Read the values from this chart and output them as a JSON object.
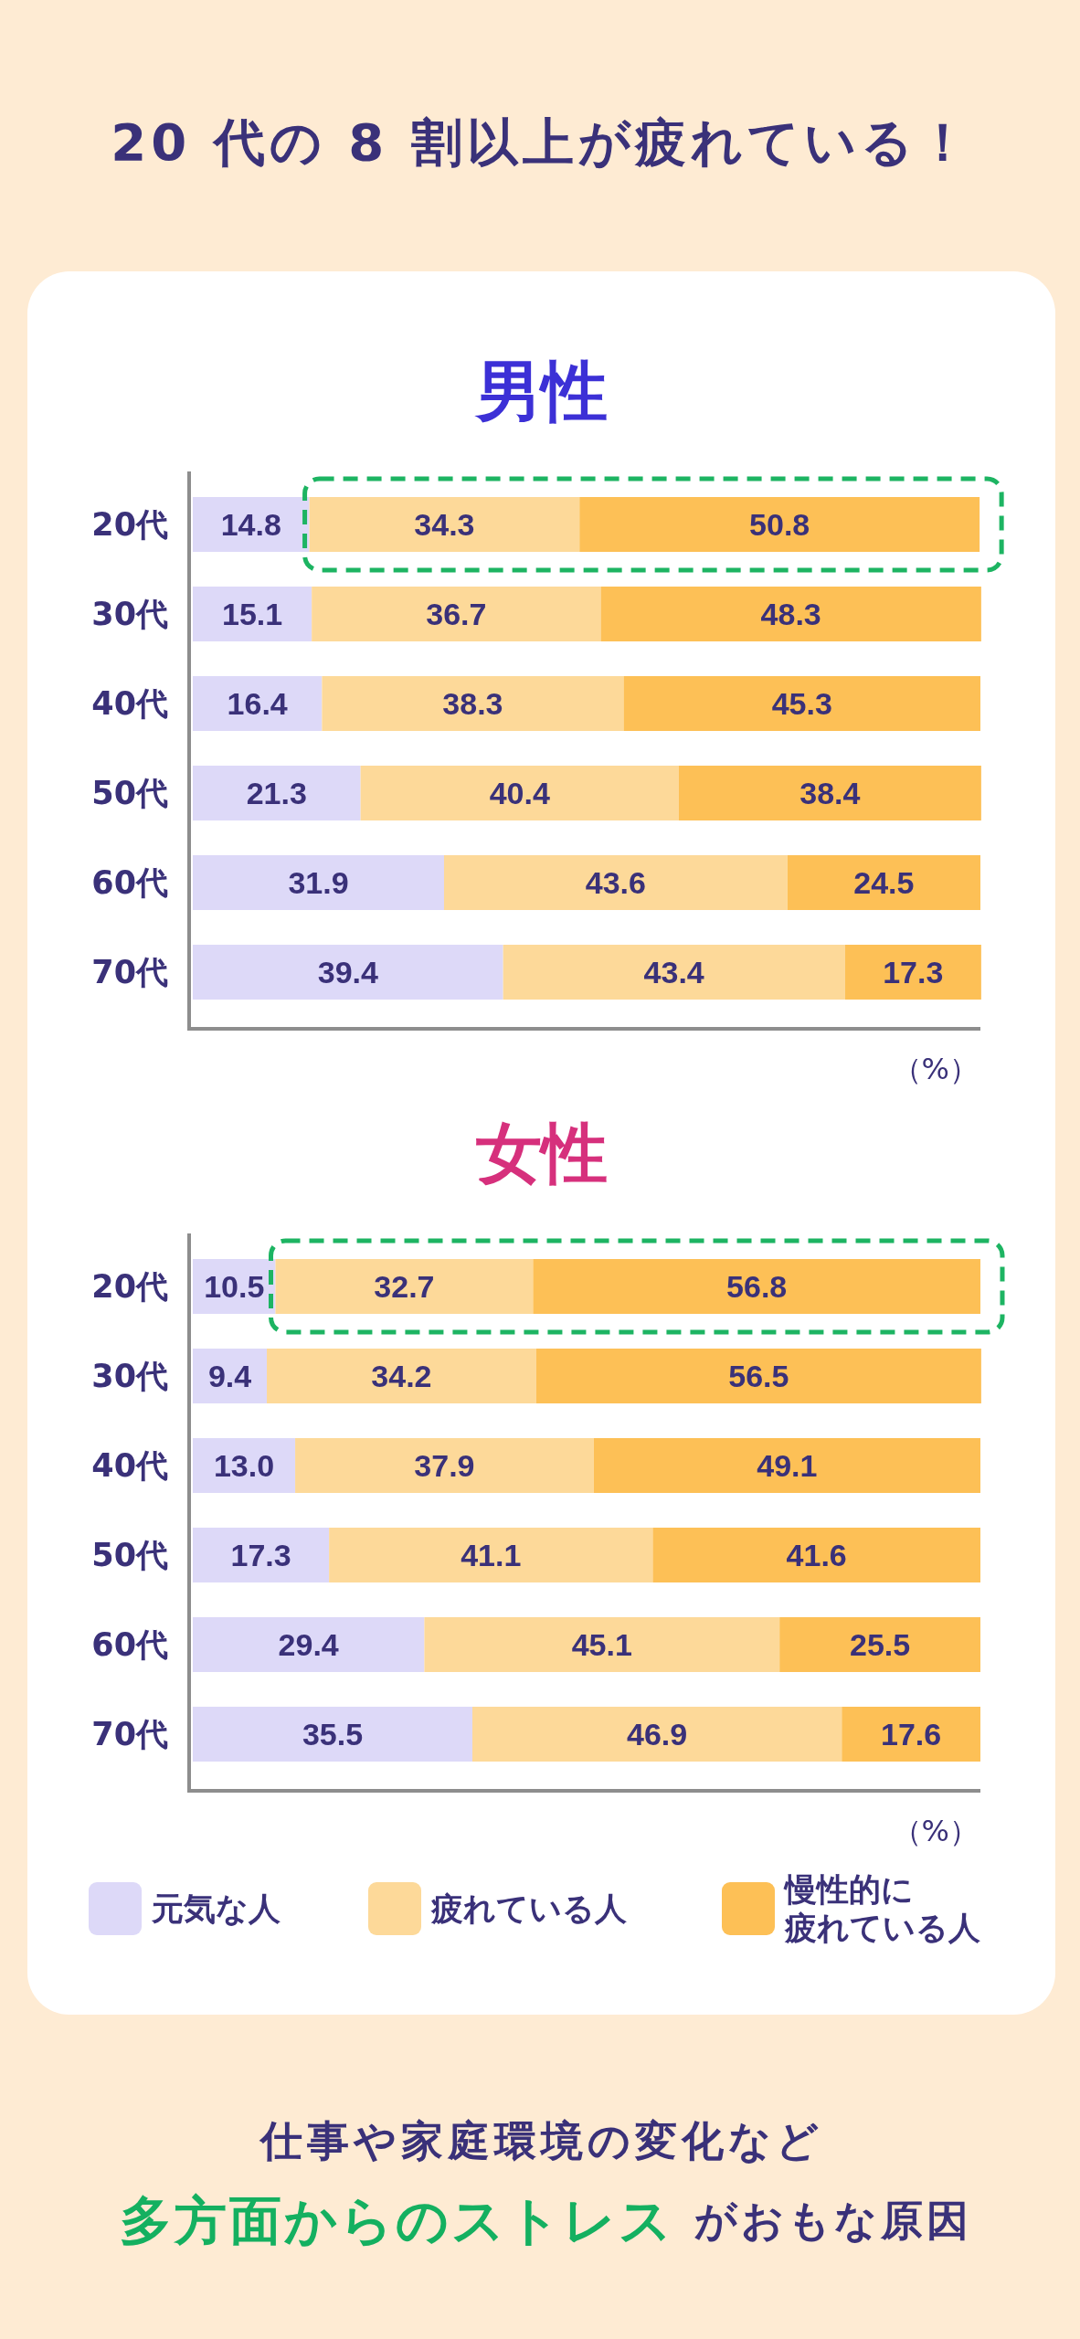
{
  "chart_data": [
    {
      "type": "bar",
      "orientation": "horizontal",
      "stacked": true,
      "title": "20 代の 8 割以上が疲れている！",
      "subtitle": "男性",
      "xlabel": "（%）",
      "categories": [
        "20代",
        "30代",
        "40代",
        "50代",
        "60代",
        "70代"
      ],
      "xlim": [
        0,
        100
      ],
      "tick_labels": "y",
      "data_labels": true,
      "legend": false,
      "series": [
        {
          "color": "#ddd9f8",
          "values": [
            14.8,
            15.1,
            16.4,
            21.3,
            31.9,
            39.4
          ]
        },
        {
          "color": "#fdd999",
          "values": [
            34.3,
            36.7,
            38.3,
            40.4,
            43.6,
            43.4
          ]
        },
        {
          "color": "#fdc056",
          "values": [
            50.8,
            48.3,
            45.3,
            38.4,
            24.5,
            17.3
          ]
        }
      ]
    },
    {
      "type": "bar",
      "orientation": "horizontal",
      "stacked": true,
      "subtitle": "女性",
      "xlabel": "（%）",
      "categories": [
        "20代",
        "30代",
        "40代",
        "50代",
        "60代",
        "70代"
      ],
      "xlim": [
        0,
        100
      ],
      "tick_labels": "y",
      "data_labels": true,
      "legend": "bottom",
      "series": [
        {
          "name": "元気な人",
          "color": "#ddd9f8",
          "values": [
            10.5,
            9.4,
            13.0,
            17.3,
            29.4,
            35.5
          ],
          "value_labels": [
            "10.5",
            "9.4",
            "13.0",
            "17.3",
            "29.4",
            "35.5"
          ]
        },
        {
          "name": "疲れている人",
          "color": "#fdd999",
          "values": [
            32.7,
            34.2,
            37.9,
            41.1,
            45.1,
            46.9
          ]
        },
        {
          "name": "慢性的に疲れている人",
          "color": "#fdc056",
          "values": [
            56.8,
            56.5,
            49.1,
            41.6,
            25.5,
            17.6
          ]
        }
      ],
      "annotations": [
        "仕事や家庭環境の変化など",
        "多方面からのストレス",
        "がおもな原因"
      ]
    }
  ]
}
